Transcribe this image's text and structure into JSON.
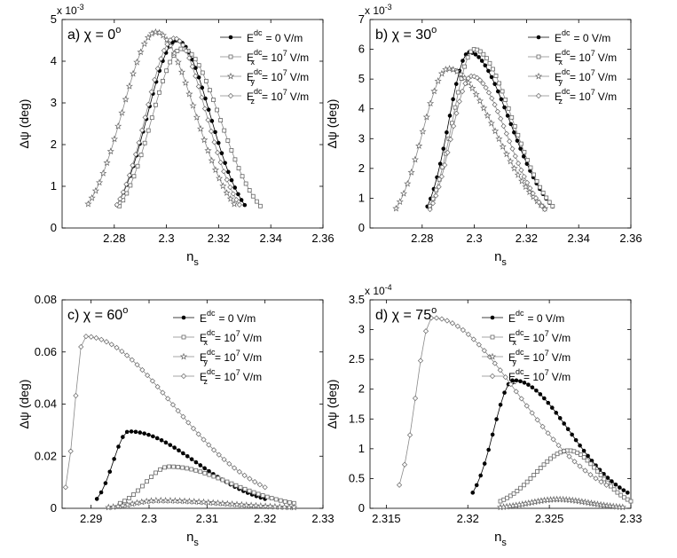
{
  "chart_data": [
    {
      "type": "line",
      "panel_label": "a) χ = 0",
      "panel_sup": "o",
      "xlabel": "n",
      "xlabel_sub": "s",
      "ylabel": "Δψ (deg)",
      "y_multiplier": "x 10",
      "y_multiplier_exp": "-3",
      "xlim": [
        2.26,
        2.36
      ],
      "ylim": [
        0,
        5
      ],
      "xticks": [
        2.28,
        2.3,
        2.32,
        2.34,
        2.36
      ],
      "xtick_labels": [
        "2.28",
        "2.3",
        "2.32",
        "2.34",
        "2.36"
      ],
      "yticks": [
        0,
        1,
        2,
        3,
        4,
        5
      ],
      "ytick_labels": [
        "0",
        "1",
        "2",
        "3",
        "4",
        "5"
      ],
      "legend": [
        {
          "main": "E",
          "sup": "dc",
          "sub": "",
          "value": "= 0   V/m",
          "marker": "dot"
        },
        {
          "main": "E",
          "sup": "dc",
          "sub": "x",
          "value": "= 10",
          "value_sup": "7",
          "value_tail": "V/m",
          "marker": "square"
        },
        {
          "main": "E",
          "sup": "dc",
          "sub": "y",
          "value": "= 10",
          "value_sup": "7",
          "value_tail": "V/m",
          "marker": "star"
        },
        {
          "main": "E",
          "sup": "dc",
          "sub": "z",
          "value": "= 10",
          "value_sup": "7",
          "value_tail": "V/m",
          "marker": "diamond"
        }
      ],
      "series": [
        {
          "marker": "dot",
          "peak_x": 2.304,
          "peak_y": 4.5,
          "x_start": 2.281,
          "x_end": 2.33,
          "n": 40
        },
        {
          "marker": "square",
          "peak_x": 2.306,
          "peak_y": 4.3,
          "x_start": 2.282,
          "x_end": 2.336,
          "n": 40
        },
        {
          "marker": "star",
          "peak_x": 2.296,
          "peak_y": 4.7,
          "x_start": 2.27,
          "x_end": 2.326,
          "n": 40
        },
        {
          "marker": "diamond",
          "peak_x": 2.303,
          "peak_y": 4.55,
          "x_start": 2.281,
          "x_end": 2.328,
          "n": 40
        }
      ]
    },
    {
      "type": "line",
      "panel_label": "b) χ = 30",
      "panel_sup": "o",
      "xlabel": "n",
      "xlabel_sub": "s",
      "ylabel": "Δψ (deg)",
      "y_multiplier": "x 10",
      "y_multiplier_exp": "-3",
      "xlim": [
        2.26,
        2.36
      ],
      "ylim": [
        0,
        7
      ],
      "xticks": [
        2.28,
        2.3,
        2.32,
        2.34,
        2.36
      ],
      "xtick_labels": [
        "2.28",
        "2.3",
        "2.32",
        "2.34",
        "2.36"
      ],
      "yticks": [
        0,
        1,
        2,
        3,
        4,
        5,
        6,
        7
      ],
      "ytick_labels": [
        "0",
        "1",
        "2",
        "3",
        "4",
        "5",
        "6",
        "7"
      ],
      "legend": [
        {
          "main": "E",
          "sup": "dc",
          "sub": "",
          "value": "= 0   V/m",
          "marker": "dot"
        },
        {
          "main": "E",
          "sup": "dc",
          "sub": "x",
          "value": "= 10",
          "value_sup": "7",
          "value_tail": "V/m",
          "marker": "square"
        },
        {
          "main": "E",
          "sup": "dc",
          "sub": "y",
          "value": "= 10",
          "value_sup": "7",
          "value_tail": "V/m",
          "marker": "star"
        },
        {
          "main": "E",
          "sup": "dc",
          "sub": "z",
          "value": "= 10",
          "value_sup": "7",
          "value_tail": "V/m",
          "marker": "diamond"
        }
      ],
      "series": [
        {
          "marker": "dot",
          "peak_x": 2.298,
          "peak_y": 5.9,
          "x_start": 2.282,
          "x_end": 2.33,
          "n": 40
        },
        {
          "marker": "square",
          "peak_x": 2.3,
          "peak_y": 6.0,
          "x_start": 2.283,
          "x_end": 2.33,
          "n": 40
        },
        {
          "marker": "star",
          "peak_x": 2.29,
          "peak_y": 5.35,
          "x_start": 2.27,
          "x_end": 2.327,
          "n": 40
        },
        {
          "marker": "diamond",
          "peak_x": 2.299,
          "peak_y": 5.1,
          "x_start": 2.283,
          "x_end": 2.327,
          "n": 40
        }
      ]
    },
    {
      "type": "line",
      "panel_label": "c) χ = 60",
      "panel_sup": "o",
      "xlabel": "n",
      "xlabel_sub": "s",
      "ylabel": "Δψ (deg)",
      "y_multiplier": "",
      "y_multiplier_exp": "",
      "xlim": [
        2.285,
        2.33
      ],
      "ylim": [
        0,
        0.08
      ],
      "xticks": [
        2.29,
        2.3,
        2.31,
        2.32,
        2.33
      ],
      "xtick_labels": [
        "2.29",
        "2.3",
        "2.31",
        "2.32",
        "2.33"
      ],
      "yticks": [
        0,
        0.02,
        0.04,
        0.06,
        0.08
      ],
      "ytick_labels": [
        "0",
        "0.02",
        "0.04",
        "0.06",
        "0.08"
      ],
      "legend": [
        {
          "main": "E",
          "sup": "dc",
          "sub": "",
          "value": "= 0   V/m",
          "marker": "dot"
        },
        {
          "main": "E",
          "sup": "dc",
          "sub": "x",
          "value": "= 10",
          "value_sup": "7",
          "value_tail": "V/m",
          "marker": "square"
        },
        {
          "main": "E",
          "sup": "dc",
          "sub": "y",
          "value": "= 10",
          "value_sup": "7",
          "value_tail": "V/m",
          "marker": "star"
        },
        {
          "main": "E",
          "sup": "dc",
          "sub": "z",
          "value": "= 10",
          "value_sup": "7",
          "value_tail": "V/m",
          "marker": "diamond"
        }
      ],
      "series": [
        {
          "marker": "dot",
          "peak_x": 2.2965,
          "peak_y": 0.0295,
          "x_start": 2.291,
          "x_end": 2.32,
          "n": 40
        },
        {
          "marker": "square",
          "peak_x": 2.3035,
          "peak_y": 0.016,
          "x_start": 2.295,
          "x_end": 2.325,
          "n": 40
        },
        {
          "marker": "star",
          "peak_x": 2.3015,
          "peak_y": 0.003,
          "x_start": 2.293,
          "x_end": 2.325,
          "n": 40
        },
        {
          "marker": "diamond",
          "peak_x": 2.2888,
          "peak_y": 0.066,
          "x_start": 2.2856,
          "x_end": 2.32,
          "n": 40
        }
      ]
    },
    {
      "type": "line",
      "panel_label": "d) χ = 75",
      "panel_sup": "o",
      "xlabel": "n",
      "xlabel_sub": "s",
      "ylabel": "Δψ (deg)",
      "y_multiplier": "x 10",
      "y_multiplier_exp": "-4",
      "xlim": [
        2.314,
        2.33
      ],
      "ylim": [
        0,
        3.5
      ],
      "xticks": [
        2.315,
        2.32,
        2.325,
        2.33
      ],
      "xtick_labels": [
        "2.315",
        "2.32",
        "2.325",
        "2.33"
      ],
      "yticks": [
        0,
        0.5,
        1,
        1.5,
        2,
        2.5,
        3,
        3.5
      ],
      "ytick_labels": [
        "0",
        "0.5",
        "1",
        "1.5",
        "2",
        "2.5",
        "3",
        "3.5"
      ],
      "legend": [
        {
          "main": "E",
          "sup": "dc",
          "sub": "",
          "value": "= 0   V/m",
          "marker": "dot"
        },
        {
          "main": "E",
          "sup": "dc",
          "sub": "x",
          "value": "= 10",
          "value_sup": "7",
          "value_tail": "V/m",
          "marker": "square"
        },
        {
          "main": "E",
          "sup": "dc",
          "sub": "y",
          "value": "= 10",
          "value_sup": "7",
          "value_tail": "V/m",
          "marker": "star"
        },
        {
          "main": "E",
          "sup": "dc",
          "sub": "z",
          "value": "= 10",
          "value_sup": "7",
          "value_tail": "V/m",
          "marker": "diamond"
        }
      ],
      "series": [
        {
          "marker": "dot",
          "peak_x": 2.3228,
          "peak_y": 2.15,
          "x_start": 2.3203,
          "x_end": 2.3298,
          "n": 40
        },
        {
          "marker": "square",
          "peak_x": 2.3262,
          "peak_y": 0.97,
          "x_start": 2.322,
          "x_end": 2.33,
          "n": 40
        },
        {
          "marker": "star",
          "peak_x": 2.3255,
          "peak_y": 0.15,
          "x_start": 2.322,
          "x_end": 2.3295,
          "n": 40
        },
        {
          "marker": "diamond",
          "peak_x": 2.3178,
          "peak_y": 3.2,
          "x_start": 2.3158,
          "x_end": 2.3285,
          "n": 40
        }
      ]
    }
  ]
}
